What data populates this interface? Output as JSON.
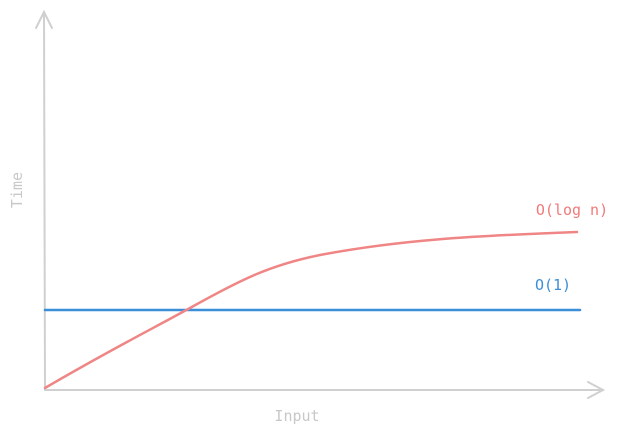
{
  "axes": {
    "y_label": "Time",
    "x_label": "Input"
  },
  "curves": [
    {
      "label": "O(log n)"
    },
    {
      "label": "O(1)"
    }
  ]
}
